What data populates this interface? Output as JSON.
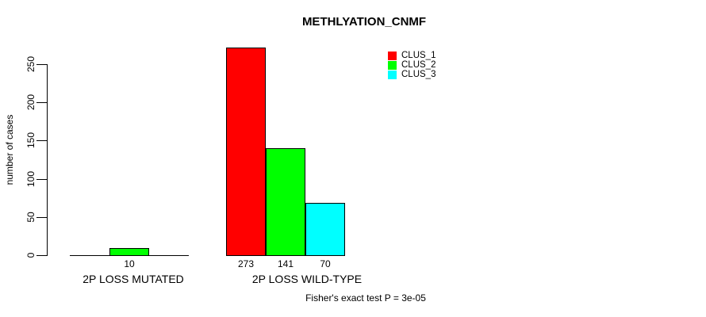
{
  "title": "METHLYATION_CNMF",
  "note": "Fisher's exact test P = 3e-05",
  "chart_data": {
    "type": "bar",
    "title": "METHLYATION_CNMF",
    "xlabel": "",
    "ylabel": "number of cases",
    "categories": [
      "2P LOSS MUTATED",
      "2P LOSS WILD-TYPE"
    ],
    "series": [
      {
        "name": "CLUS_1",
        "color": "#ff0000",
        "values": [
          0,
          273
        ]
      },
      {
        "name": "CLUS_2",
        "color": "#00ff00",
        "values": [
          10,
          141
        ]
      },
      {
        "name": "CLUS_3",
        "color": "#00ffff",
        "values": [
          0,
          70
        ]
      }
    ],
    "bar_labels_shown": [
      "10",
      "273",
      "141",
      "70"
    ],
    "yticks": [
      0,
      50,
      100,
      150,
      200,
      250
    ],
    "ylim": [
      0,
      250
    ],
    "grid": false,
    "legend_position": "top-right",
    "annotation": "Fisher's exact test P = 3e-05"
  }
}
